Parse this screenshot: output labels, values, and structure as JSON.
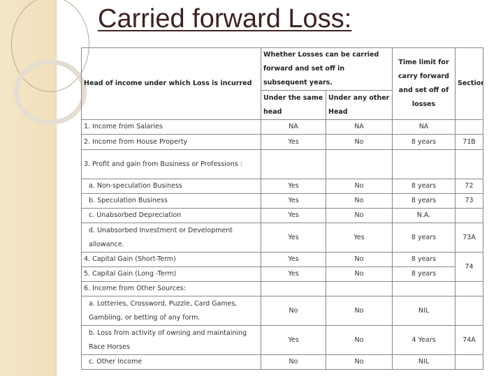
{
  "title": "Carried forward Loss:",
  "table": {
    "headers": {
      "head": "Head of income under which Loss is incurred",
      "group": "Whether Losses can be carried forward and set off in subsequent years.",
      "same_head": "Under the same head",
      "other_head": "Under any other Head",
      "time_limit": "Time limit for carry forward and set off of losses",
      "section": "Section"
    },
    "rows": [
      {
        "head": "1. Income from Salaries",
        "same": "NA",
        "other": "NA",
        "time": "NA",
        "section": ""
      },
      {
        "head": "2. Income from House Property",
        "same": "Yes",
        "other": "No",
        "time": "8 years",
        "section": "71B"
      },
      {
        "head": "3. Profit and gain from Business or Professions :",
        "same": "",
        "other": "",
        "time": "",
        "section": ""
      },
      {
        "head": "a. Non-speculation Business",
        "same": "Yes",
        "other": "No",
        "time": "8 years",
        "section": "72"
      },
      {
        "head": "b. Speculation Business",
        "same": "Yes",
        "other": "No",
        "time": "8 years",
        "section": "73"
      },
      {
        "head": "c. Unabsorbed Depreciation",
        "same": "Yes",
        "other": "No",
        "time": "N.A.",
        "section": ""
      },
      {
        "head": "d. Unabsorbed Investment or Development allowance.",
        "same": "Yes",
        "other": "Yes",
        "time": "8 years",
        "section": "73A"
      },
      {
        "head": "4. Capital Gain (Short-Term)",
        "same": "Yes",
        "other": "No",
        "time": "8 years",
        "section": "74"
      },
      {
        "head": "5. Capital Gain (Long -Term)",
        "same": "Yes",
        "other": "No",
        "time": "8 years",
        "section": "74"
      },
      {
        "head": "6. Income from Other Sources:",
        "same": "",
        "other": "",
        "time": "",
        "section": ""
      },
      {
        "head": "a. Lotteries, Crossword, Puzzle, Card Games, Gambling, or betting of any form.",
        "same": "No",
        "other": "No",
        "time": "NIL",
        "section": ""
      },
      {
        "head": "b. Loss from activity of owning and maintaining Race Horses",
        "same": "Yes",
        "other": "No",
        "time": "4 Years",
        "section": "74A"
      },
      {
        "head": "c. Other Income",
        "same": "No",
        "other": "No",
        "time": "NIL",
        "section": ""
      }
    ]
  }
}
